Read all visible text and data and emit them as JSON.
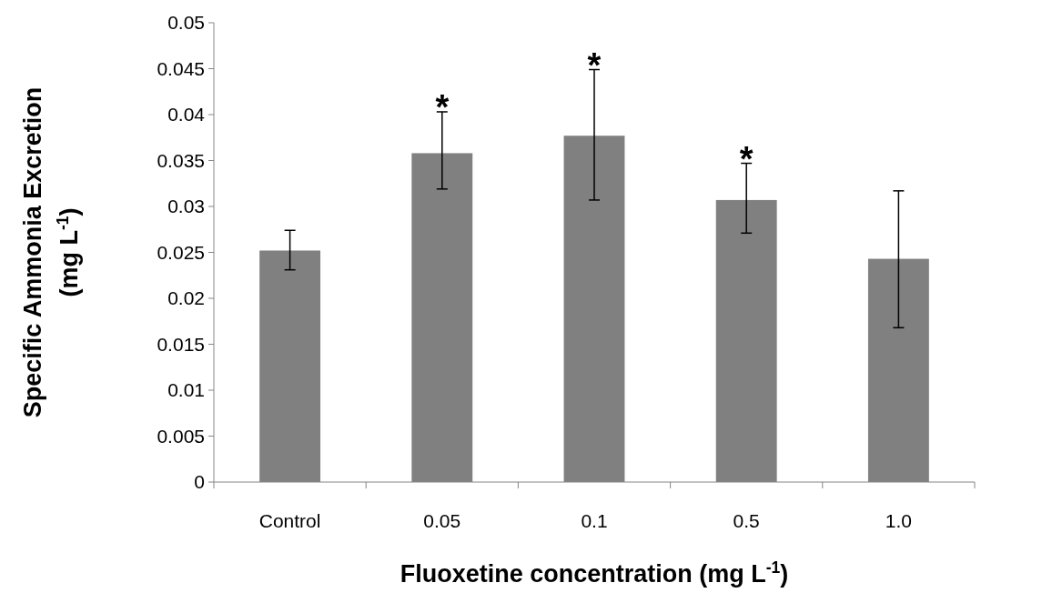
{
  "chart_data": {
    "type": "bar",
    "xlabel": "Fluoxetine concentration (mg L$^{-1}$)",
    "ylabel": "Specific Ammonia Excretion\n(mg L$^{-1}$)",
    "categories": [
      "Control",
      "0.05",
      "0.1",
      "0.5",
      "1.0"
    ],
    "values": [
      0.0252,
      0.0358,
      0.0377,
      0.0307,
      0.0243
    ],
    "errors": [
      [
        0.0231,
        0.0274
      ],
      [
        0.0319,
        0.0403
      ],
      [
        0.0307,
        0.0449
      ],
      [
        0.0271,
        0.0347
      ],
      [
        0.0168,
        0.0317
      ]
    ],
    "color": "#808080",
    "ylim": [
      0,
      0.05
    ],
    "yticks": [
      0,
      0.005,
      0.01,
      0.015,
      0.02,
      0.025,
      0.03,
      0.035,
      0.04,
      0.045,
      0.05
    ],
    "grid": false,
    "annotations": [
      {
        "text": "*",
        "x": "0.05",
        "y": 0.0403
      },
      {
        "text": "*",
        "x": "0.1",
        "y": 0.0449
      },
      {
        "text": "*",
        "x": "0.5",
        "y": 0.0347
      }
    ]
  }
}
